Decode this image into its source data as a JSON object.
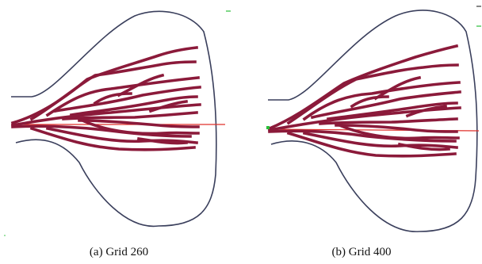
{
  "panels": [
    {
      "id": "a",
      "caption": "(a) Grid 260"
    },
    {
      "id": "b",
      "caption": "(b) Grid 400"
    }
  ],
  "colors": {
    "branch": "#8b1a3a",
    "boundary": "#3a3f5c",
    "centerline": "#e0302a",
    "marker": "#2bbf3a",
    "background": "#ffffff"
  }
}
